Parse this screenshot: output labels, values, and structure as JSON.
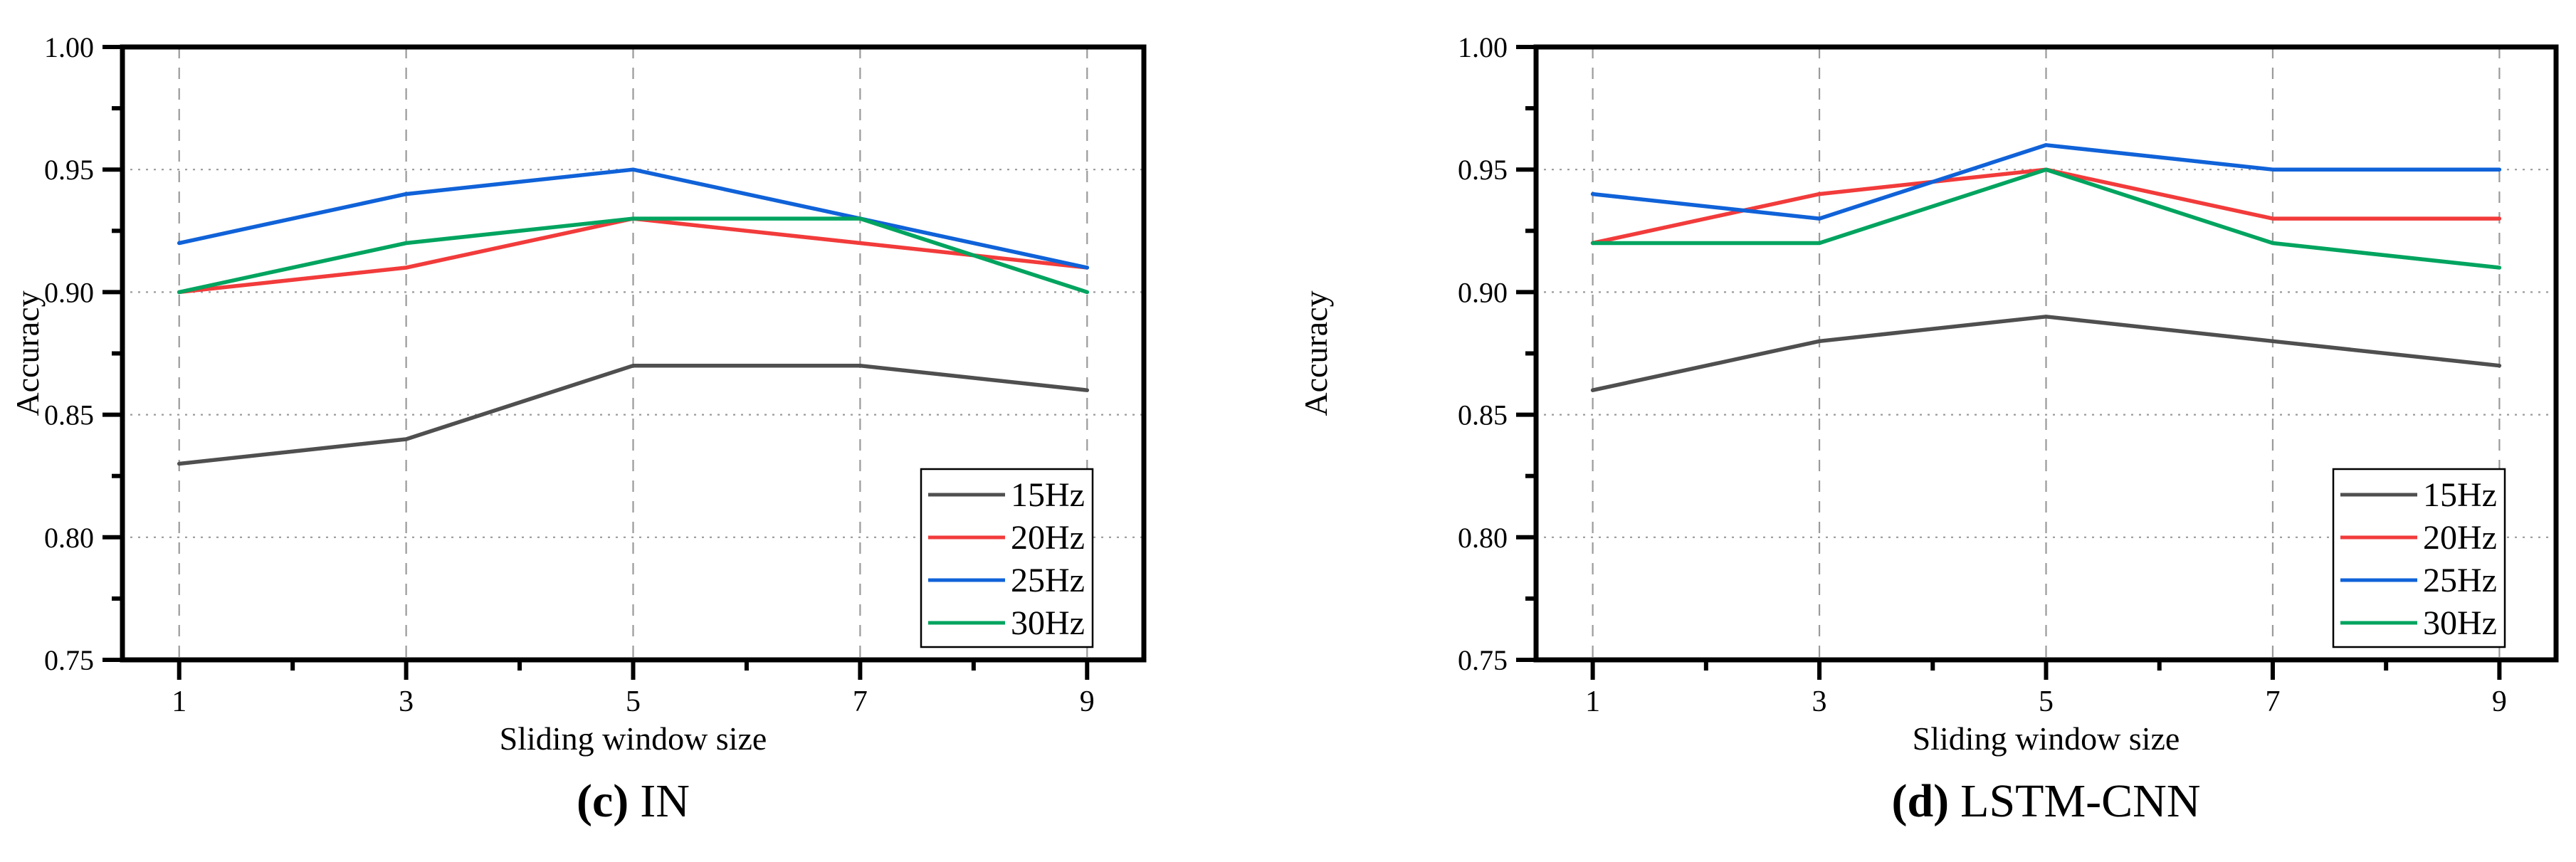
{
  "figure": {
    "background": "#ffffff",
    "panels": [
      {
        "caption_marker": "(c)",
        "caption_label": "IN"
      },
      {
        "caption_marker": "(d)",
        "caption_label": "LSTM-CNN"
      }
    ]
  },
  "chart_data": [
    {
      "type": "line",
      "title": "(c) IN",
      "xlabel": "Sliding window size",
      "ylabel": "Accuracy",
      "x": [
        1,
        3,
        5,
        7,
        9
      ],
      "xticks": [
        1,
        3,
        5,
        7,
        9
      ],
      "minor_xticks": [
        2,
        4,
        6,
        8
      ],
      "xlim": [
        0.5,
        9.5
      ],
      "ylim": [
        0.75,
        1.0
      ],
      "yticks": [
        0.75,
        0.8,
        0.85,
        0.9,
        0.95,
        1.0
      ],
      "minor_yticks": [
        0.775,
        0.825,
        0.875,
        0.925,
        0.975
      ],
      "grid": true,
      "legend_position": "lower-right",
      "series": [
        {
          "name": "15Hz",
          "color": "#4f4f4f",
          "values": [
            0.83,
            0.84,
            0.87,
            0.87,
            0.86
          ]
        },
        {
          "name": "20Hz",
          "color": "#f23b3b",
          "values": [
            0.9,
            0.91,
            0.93,
            0.92,
            0.91
          ]
        },
        {
          "name": "25Hz",
          "color": "#1062d8",
          "values": [
            0.92,
            0.94,
            0.95,
            0.93,
            0.91
          ]
        },
        {
          "name": "30Hz",
          "color": "#00a45f",
          "values": [
            0.9,
            0.92,
            0.93,
            0.93,
            0.9
          ]
        }
      ]
    },
    {
      "type": "line",
      "title": "(d) LSTM-CNN",
      "xlabel": "Sliding window size",
      "ylabel": "Accuracy",
      "x": [
        1,
        3,
        5,
        7,
        9
      ],
      "xticks": [
        1,
        3,
        5,
        7,
        9
      ],
      "minor_xticks": [
        2,
        4,
        6,
        8
      ],
      "xlim": [
        0.5,
        9.5
      ],
      "ylim": [
        0.75,
        1.0
      ],
      "yticks": [
        0.75,
        0.8,
        0.85,
        0.9,
        0.95,
        1.0
      ],
      "minor_yticks": [
        0.775,
        0.825,
        0.875,
        0.925,
        0.975
      ],
      "grid": true,
      "legend_position": "lower-right",
      "series": [
        {
          "name": "15Hz",
          "color": "#4f4f4f",
          "values": [
            0.86,
            0.88,
            0.89,
            0.88,
            0.87
          ]
        },
        {
          "name": "20Hz",
          "color": "#f23b3b",
          "values": [
            0.92,
            0.94,
            0.95,
            0.93,
            0.93
          ]
        },
        {
          "name": "25Hz",
          "color": "#1062d8",
          "values": [
            0.94,
            0.93,
            0.96,
            0.95,
            0.95
          ]
        },
        {
          "name": "30Hz",
          "color": "#00a45f",
          "values": [
            0.92,
            0.92,
            0.95,
            0.92,
            0.91
          ]
        }
      ]
    }
  ]
}
